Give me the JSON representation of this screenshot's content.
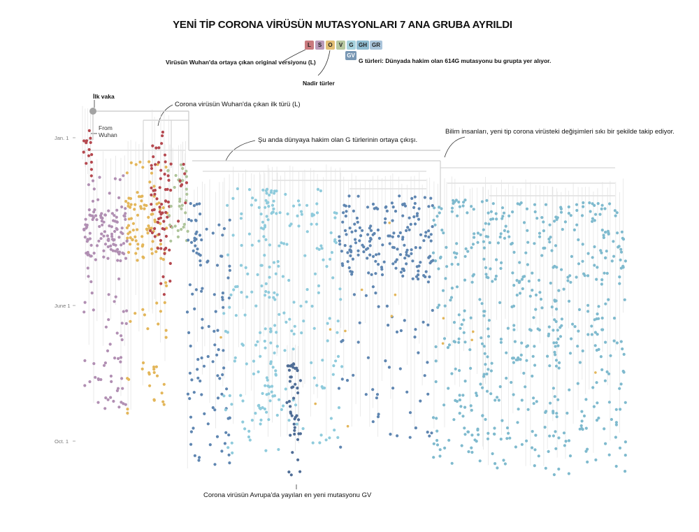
{
  "title": "YENİ TİP CORONA VİRÜSÜN MUTASYONLARI 7 ANA GRUBA AYRILDI",
  "legend": [
    {
      "code": "L",
      "color": "#c97a7e"
    },
    {
      "code": "S",
      "color": "#b99ab9"
    },
    {
      "code": "O",
      "color": "#e3bf75"
    },
    {
      "code": "V",
      "color": "#b7c8a0"
    },
    {
      "code": "G",
      "color": "#a7d3de"
    },
    {
      "code": "GH",
      "color": "#8fbcd0"
    },
    {
      "code": "GR",
      "color": "#a9c4da"
    },
    {
      "code": "GV",
      "color": "#7897b4"
    }
  ],
  "annotations": {
    "original_version": "Virüsün Wuhan'da ortaya çıkan original versiyonu (L)",
    "rare_types": "Nadir türler",
    "g_types": "G türleri: Dünyada hakim olan 614G mutasyonu bu grupta yer alıyor.",
    "first_case": "İlk vaka",
    "from_wuhan": "From\nWuhan",
    "first_type": "Corona virüsün Wuhan'da çıkan ilk türü (L)",
    "g_emergence": "Şu anda dünyaya hakim olan G türlerinin ortaya çıkışı.",
    "scientists": "Bilim insanları, yeni tip corona virüsteki değişimleri sıkı bir şekilde takip ediyor.",
    "gv_europe": "Corona virüsün Avrupa'da yayılan en yeni mutasyonu GV"
  },
  "time_axis": [
    "Jan. 1",
    "June 1",
    "Oct. 1"
  ],
  "colors": {
    "L": "#b5484f",
    "S": "#b18fb3",
    "O": "#e3b65a",
    "V": "#aec49a",
    "G_light": "#8fcbdc",
    "GH": "#5f86b1",
    "GR": "#7fbace",
    "GV": "#4f6d96",
    "branch": "#d6d6d6",
    "root": "#9a9a9a"
  },
  "clades": [
    {
      "name": "L",
      "color_key": "L"
    },
    {
      "name": "S",
      "color_key": "S"
    },
    {
      "name": "O",
      "color_key": "O"
    },
    {
      "name": "V",
      "color_key": "V"
    },
    {
      "name": "GH",
      "color_key": "GH"
    },
    {
      "name": "G",
      "color_key": "G_light"
    },
    {
      "name": "GV",
      "color_key": "GV"
    },
    {
      "name": "GR",
      "color_key": "GR"
    }
  ]
}
